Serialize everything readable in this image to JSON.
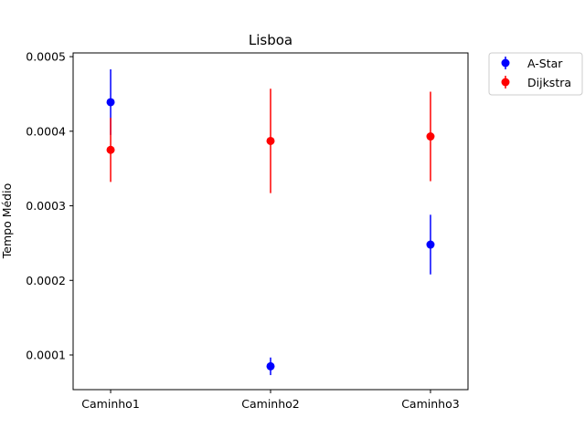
{
  "chart_data": {
    "type": "scatter",
    "title": "Lisboa",
    "xlabel": "",
    "ylabel": "Tempo Médio",
    "categories": [
      "Caminho1",
      "Caminho2",
      "Caminho3"
    ],
    "ylim": [
      5.35e-05,
      0.000505
    ],
    "yticks": [
      0.0001,
      0.0002,
      0.0003,
      0.0004,
      0.0005
    ],
    "ytick_labels": [
      "0.0001",
      "0.0002",
      "0.0003",
      "0.0004",
      "0.0005"
    ],
    "grid": false,
    "legend_position": "outside-top-right",
    "series": [
      {
        "name": "A-Star",
        "color": "#0000ff",
        "values": [
          0.000439,
          8.48e-05,
          0.000248
        ],
        "errors": [
          4.4e-05,
          1.18e-05,
          4e-05
        ]
      },
      {
        "name": "Dijkstra",
        "color": "#ff0000",
        "values": [
          0.000375,
          0.000387,
          0.000393
        ],
        "errors": [
          4.3e-05,
          7e-05,
          6e-05
        ]
      }
    ]
  }
}
